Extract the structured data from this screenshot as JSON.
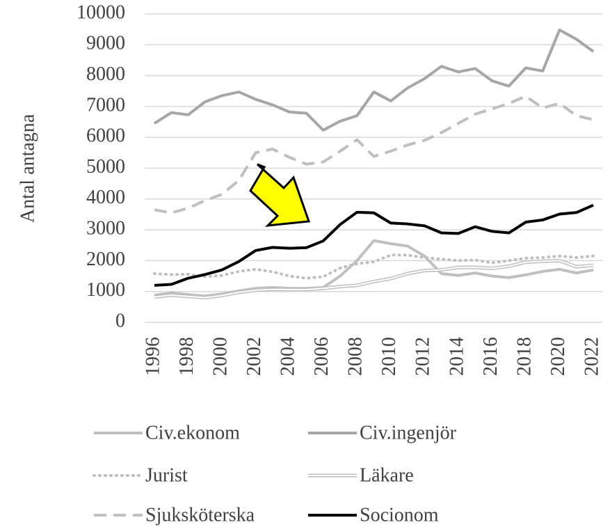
{
  "chart_data": {
    "type": "line",
    "y_label": "Antal antagna",
    "x": [
      1996,
      1997,
      1998,
      1999,
      2000,
      2001,
      2002,
      2003,
      2004,
      2005,
      2006,
      2007,
      2008,
      2009,
      2010,
      2011,
      2012,
      2013,
      2014,
      2015,
      2016,
      2017,
      2018,
      2019,
      2020,
      2021,
      2022
    ],
    "xlim": [
      1996,
      2022
    ],
    "xticks": [
      1996,
      1998,
      2000,
      2002,
      2004,
      2006,
      2008,
      2010,
      2012,
      2014,
      2016,
      2018,
      2020,
      2022
    ],
    "ylim": [
      0,
      10000
    ],
    "yticks": [
      0,
      1000,
      2000,
      3000,
      4000,
      5000,
      6000,
      7000,
      8000,
      9000,
      10000
    ],
    "grid": true,
    "legend": "bottom",
    "series": [
      {
        "name": "Civ.ekonom",
        "color": "#bfbfbf",
        "style": "solid",
        "values": [
          880,
          950,
          900,
          850,
          920,
          1020,
          1100,
          1130,
          1100,
          1100,
          1130,
          1500,
          2000,
          2650,
          2550,
          2470,
          2150,
          1580,
          1520,
          1600,
          1500,
          1450,
          1540,
          1650,
          1720,
          1600,
          1700
        ]
      },
      {
        "name": "Civ.ingenjör",
        "color": "#a6a6a6",
        "style": "solid",
        "values": [
          6450,
          6800,
          6730,
          7150,
          7350,
          7470,
          7230,
          7050,
          6820,
          6780,
          6230,
          6520,
          6700,
          7470,
          7180,
          7600,
          7900,
          8300,
          8120,
          8230,
          7830,
          7660,
          8250,
          8150,
          9480,
          9180,
          8780
        ]
      },
      {
        "name": "Jurist",
        "color": "#bfbfbf",
        "style": "dotted",
        "values": [
          1580,
          1550,
          1560,
          1480,
          1520,
          1650,
          1720,
          1640,
          1500,
          1430,
          1480,
          1760,
          1900,
          1960,
          2180,
          2180,
          2100,
          2050,
          2000,
          2020,
          1930,
          2000,
          2080,
          2100,
          2150,
          2100,
          2150
        ]
      },
      {
        "name": "Läkare",
        "color": "#bfbfbf",
        "style": "double",
        "values": [
          820,
          880,
          840,
          800,
          870,
          970,
          1040,
          1070,
          1060,
          1060,
          1100,
          1160,
          1200,
          1320,
          1420,
          1580,
          1680,
          1700,
          1780,
          1780,
          1750,
          1820,
          1950,
          1980,
          2000,
          1800,
          1850
        ]
      },
      {
        "name": "Sjuksköterska",
        "color": "#bfbfbf",
        "style": "dashed",
        "values": [
          3650,
          3550,
          3700,
          3950,
          4150,
          4600,
          5500,
          5620,
          5350,
          5130,
          5200,
          5550,
          5920,
          5380,
          5550,
          5750,
          5900,
          6150,
          6450,
          6750,
          6920,
          7100,
          7330,
          6950,
          7100,
          6700,
          6570
        ]
      },
      {
        "name": "Socionom",
        "color": "#000000",
        "style": "solid",
        "values": [
          1200,
          1230,
          1430,
          1550,
          1700,
          1970,
          2330,
          2430,
          2400,
          2420,
          2640,
          3170,
          3570,
          3550,
          3220,
          3190,
          3130,
          2900,
          2880,
          3100,
          2950,
          2900,
          3250,
          3320,
          3510,
          3560,
          3800
        ]
      }
    ]
  }
}
